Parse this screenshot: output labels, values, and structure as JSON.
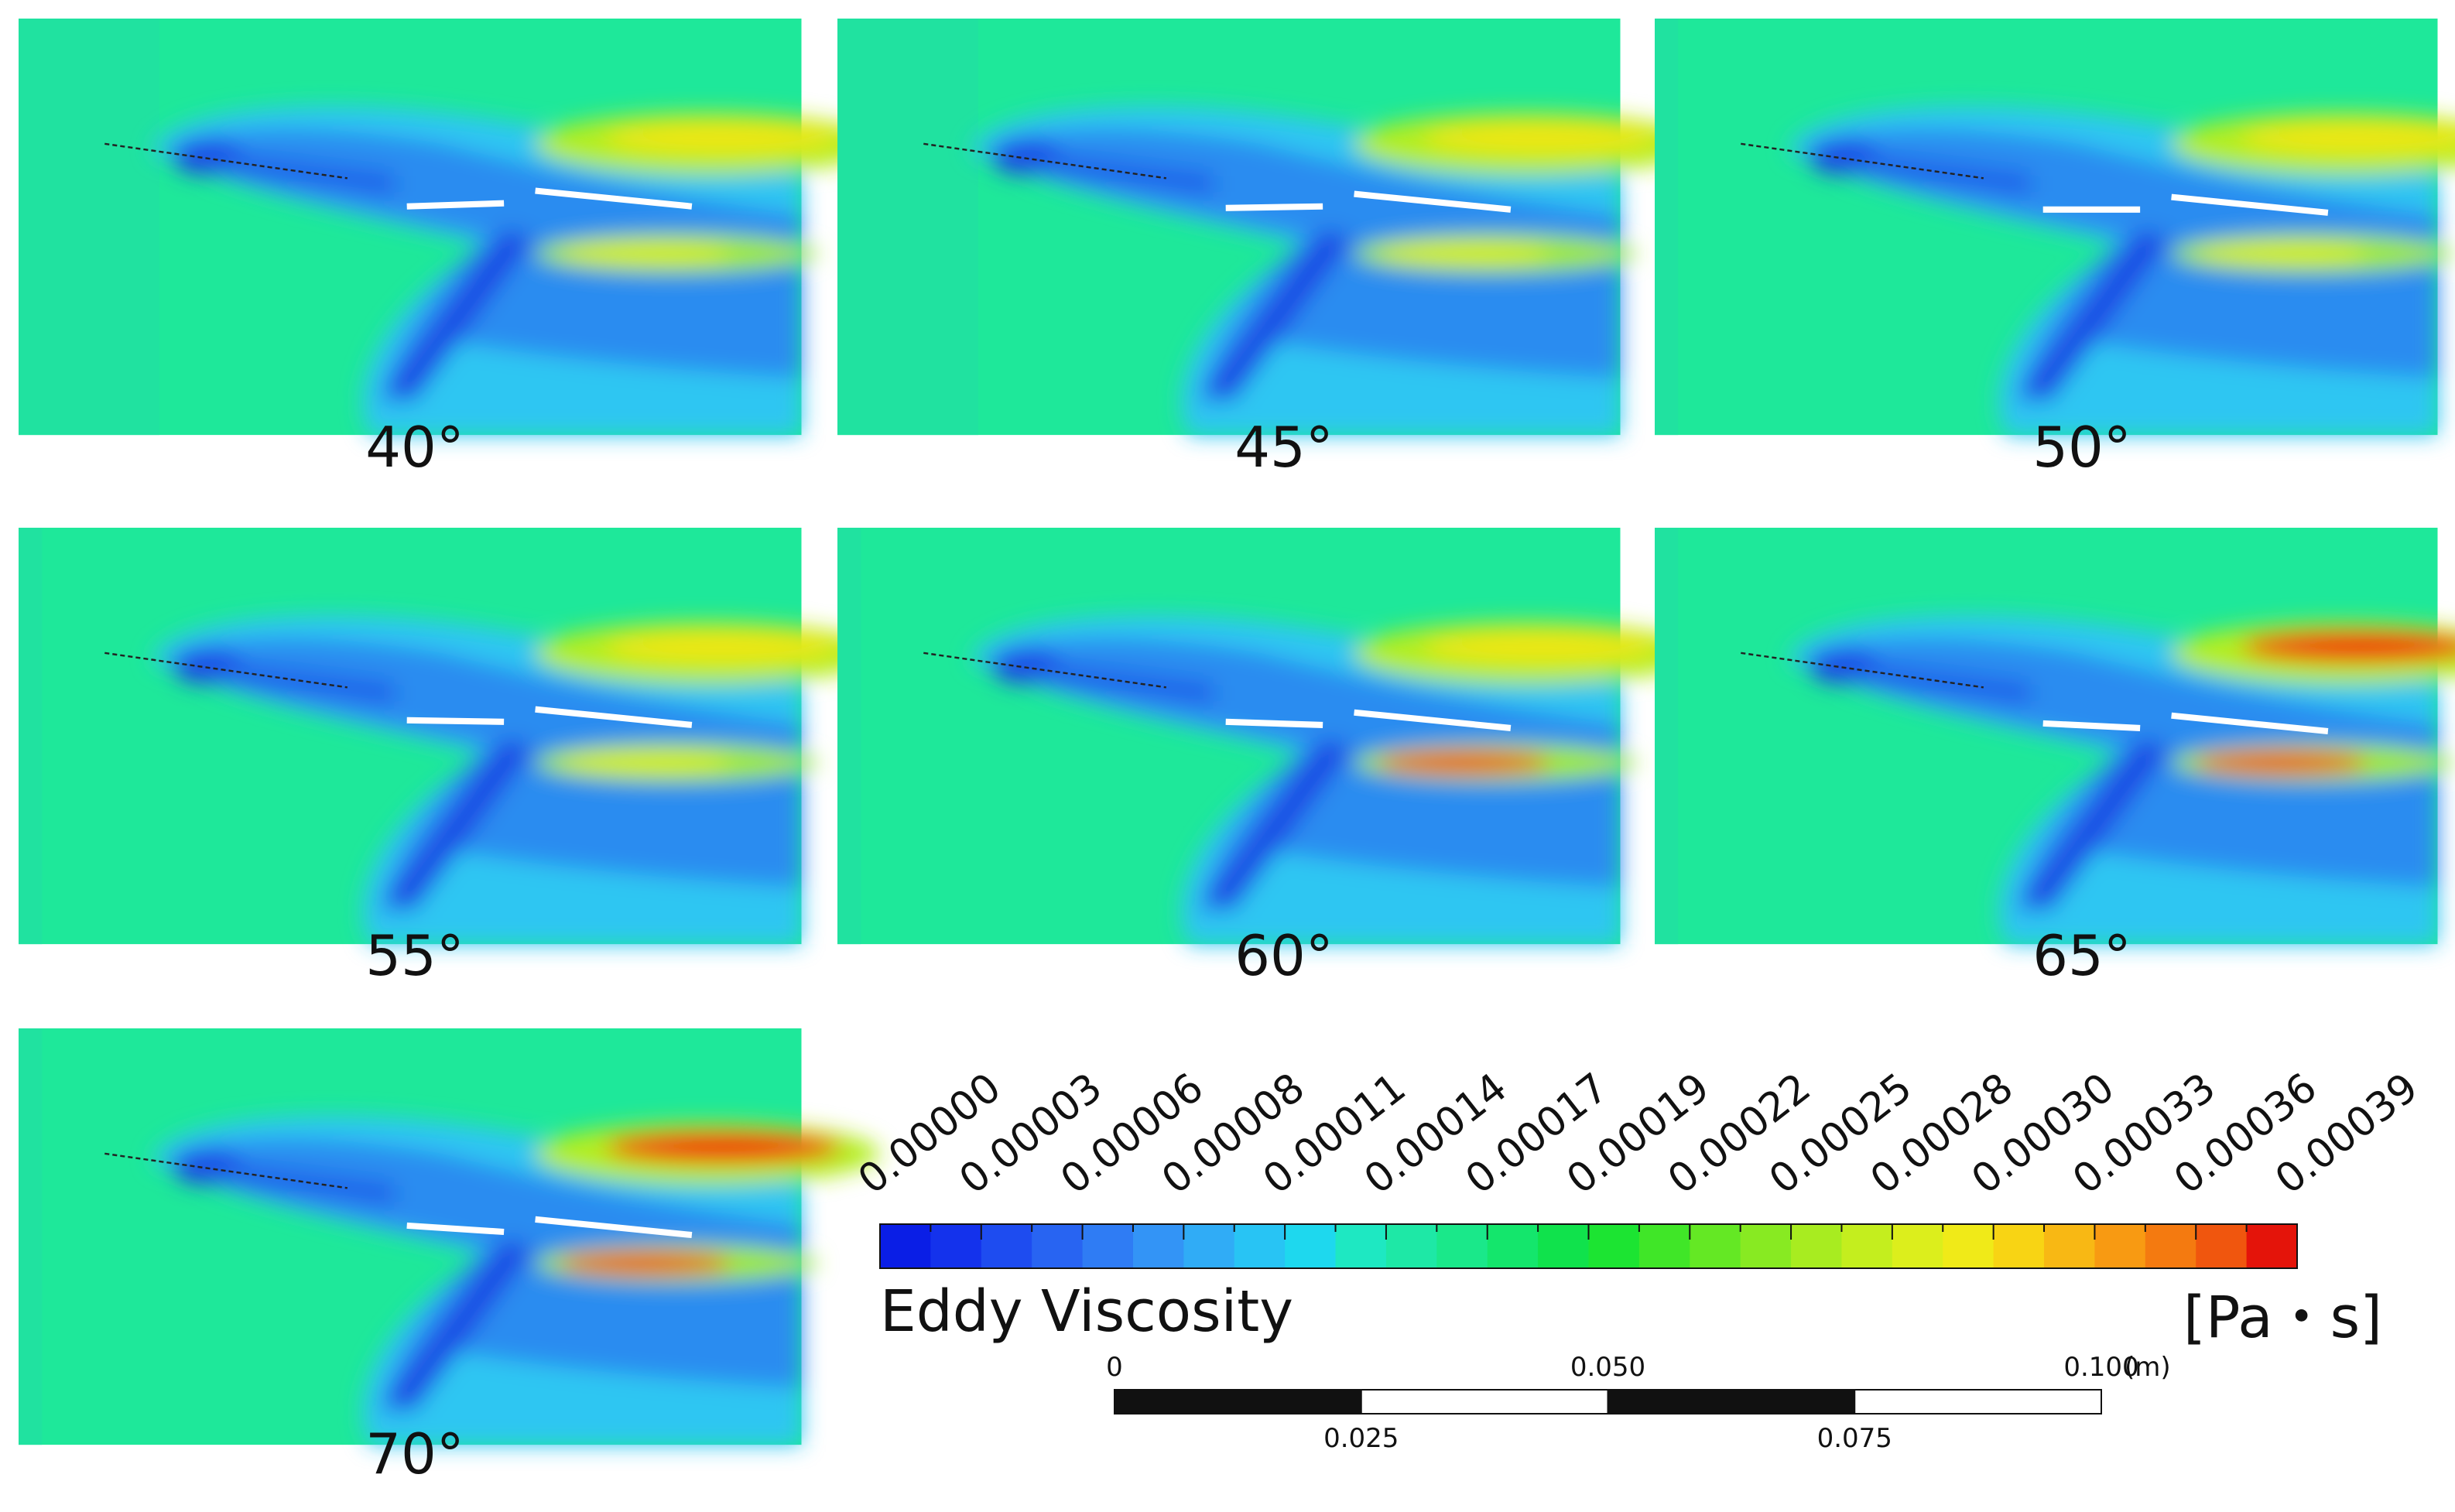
{
  "panels": [
    {
      "label": "40°"
    },
    {
      "label": "45°"
    },
    {
      "label": "50°"
    },
    {
      "label": "55°"
    },
    {
      "label": "60°"
    },
    {
      "label": "65°"
    },
    {
      "label": "70°"
    }
  ],
  "colorbar": {
    "ticks": [
      "0.00000",
      "0.00003",
      "0.00006",
      "0.00008",
      "0.00011",
      "0.00014",
      "0.00017",
      "0.00019",
      "0.00022",
      "0.00025",
      "0.00028",
      "0.00030",
      "0.00033",
      "0.00036",
      "0.00039"
    ],
    "title": "Eddy Viscosity",
    "unit": "[Pa・s]",
    "colors": [
      "#0a1ee6",
      "#1432ec",
      "#1e4cf0",
      "#2864f2",
      "#2f7cf4",
      "#3394f6",
      "#30acf6",
      "#28c4f4",
      "#1ed8ee",
      "#1ee8c2",
      "#1ee8a6",
      "#1ae88a",
      "#14e66c",
      "#10e24c",
      "#1ce432",
      "#40e628",
      "#64e824",
      "#88ea22",
      "#a8ec20",
      "#c4ee1e",
      "#dcee1c",
      "#f0ea18",
      "#f8d414",
      "#f8b814",
      "#f89a12",
      "#f47a10",
      "#f0560e",
      "#e4140a"
    ]
  },
  "scale_bar": {
    "top_labels": [
      "0",
      "0.050",
      "0.100"
    ],
    "unit": "(m)",
    "bottom_labels": [
      "0.025",
      "0.075"
    ]
  }
}
